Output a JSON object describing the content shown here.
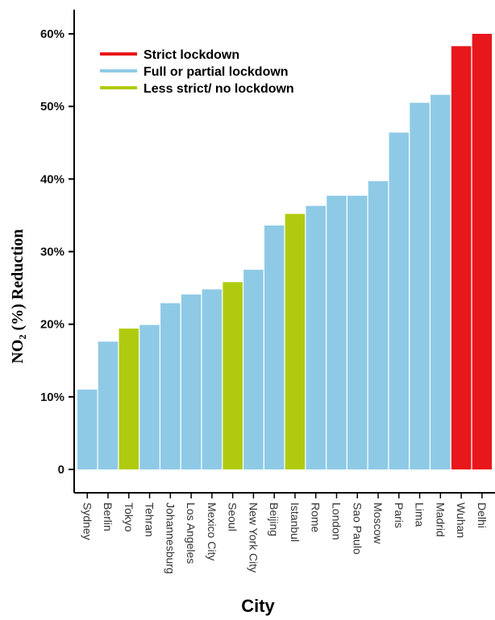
{
  "chart_data": {
    "type": "bar",
    "xlabel": "City",
    "ylabel": "NO₂ (%) Reduction",
    "ylim": [
      0,
      60
    ],
    "yticks": [
      {
        "value": 0,
        "label": "0"
      },
      {
        "value": 10,
        "label": "10%"
      },
      {
        "value": 20,
        "label": "20%"
      },
      {
        "value": 30,
        "label": "30%"
      },
      {
        "value": 40,
        "label": "40%"
      },
      {
        "value": 50,
        "label": "50%"
      },
      {
        "value": 60,
        "label": "60%"
      }
    ],
    "categories": [
      "Sydney",
      "Berlin",
      "Tokyo",
      "Tehran",
      "Johannesburg",
      "Los Angeles",
      "Mexico City",
      "Seoul",
      "New York City",
      "Beijing",
      "Istanbul",
      "Rome",
      "London",
      "Sao Paulo",
      "Moscow",
      "Paris",
      "Lima",
      "Madrid",
      "Wuhan",
      "Delhi"
    ],
    "values": [
      11,
      17.6,
      19.4,
      19.9,
      22.9,
      24.1,
      24.8,
      25.8,
      27.5,
      33.6,
      35.2,
      36.3,
      37.7,
      37.7,
      39.7,
      46.4,
      50.5,
      51.6,
      58.3,
      60
    ],
    "groups": [
      "Full or partial lockdown",
      "Full or partial lockdown",
      "Less strict/ no lockdown",
      "Full or partial lockdown",
      "Full or partial lockdown",
      "Full or partial lockdown",
      "Full or partial lockdown",
      "Less strict/ no lockdown",
      "Full or partial lockdown",
      "Full or partial lockdown",
      "Less strict/ no lockdown",
      "Full or partial lockdown",
      "Full or partial lockdown",
      "Full or partial lockdown",
      "Full or partial lockdown",
      "Full or partial lockdown",
      "Full or partial lockdown",
      "Full or partial lockdown",
      "Strict lockdown",
      "Strict lockdown"
    ],
    "legend": {
      "position": "top-left",
      "entries": [
        {
          "label": "Strict lockdown",
          "color": "#e8171b"
        },
        {
          "label": "Full or partial lockdown",
          "color": "#8ecae6"
        },
        {
          "label": "Less strict/ no lockdown",
          "color": "#b0cb0f"
        }
      ]
    },
    "grid": false
  }
}
